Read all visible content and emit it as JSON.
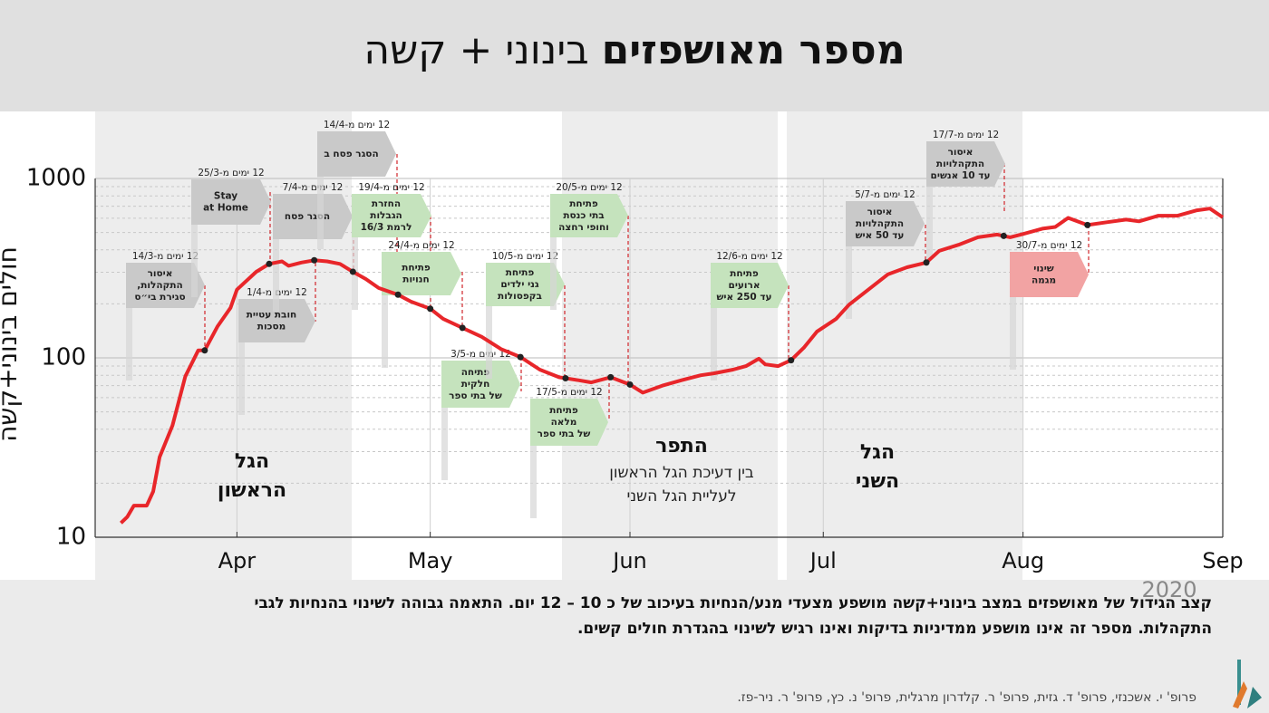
{
  "chart_data": {
    "type": "line",
    "title_bold": "מספר מאושפזים",
    "title": "בינוני + קשה",
    "ylabel": "חולים בינוני+קשה",
    "year_label": "2020",
    "log_scale": true,
    "grid": true,
    "xlim": [
      9,
      184
    ],
    "xticks": [
      {
        "value": 31,
        "label": "Apr"
      },
      {
        "value": 61,
        "label": "May"
      },
      {
        "value": 92,
        "label": "Jun"
      },
      {
        "value": 122,
        "label": "Jul"
      },
      {
        "value": 153,
        "label": "Aug"
      },
      {
        "value": 184,
        "label": "Sep"
      }
    ],
    "ylim": [
      10,
      1000
    ],
    "yticks": [
      10,
      100,
      1000
    ],
    "y_minor_ticks": [
      20,
      30,
      40,
      50,
      60,
      70,
      80,
      90,
      200,
      300,
      400,
      500,
      600,
      700,
      800,
      900
    ],
    "series": [
      {
        "name": "מאושפזים בינוני+קשה",
        "color": "#e8262a",
        "x": [
          13,
          14,
          15,
          17,
          18,
          19,
          21,
          23,
          25,
          26,
          28,
          30,
          31,
          34,
          36,
          38,
          39,
          41,
          43,
          45,
          47,
          49,
          51,
          53,
          56,
          58,
          61,
          63,
          66,
          69,
          72,
          75,
          78,
          81,
          84,
          86,
          89,
          92,
          94,
          97,
          100,
          103,
          105,
          108,
          110,
          112,
          113,
          115,
          117,
          119,
          121,
          124,
          126,
          129,
          132,
          135,
          138,
          140,
          143,
          146,
          149,
          151,
          153,
          156,
          158,
          160,
          163,
          166,
          169,
          171,
          174,
          177,
          180,
          182,
          184
        ],
        "values": [
          12,
          13,
          15,
          15,
          18,
          28,
          42,
          79,
          110,
          110,
          150,
          190,
          240,
          302,
          334,
          345,
          326,
          340,
          350,
          345,
          334,
          302,
          275,
          245,
          225,
          206,
          188,
          165,
          147,
          131,
          112,
          101,
          86,
          78,
          75,
          73,
          78,
          71,
          64,
          70,
          75,
          80,
          82,
          86,
          90,
          99,
          92,
          90,
          97,
          114,
          140,
          165,
          198,
          240,
          292,
          320,
          340,
          395,
          427,
          470,
          487,
          470,
          490,
          525,
          537,
          603,
          550,
          570,
          590,
          577,
          620,
          620,
          665,
          680,
          607
        ]
      }
    ],
    "markers": [
      26,
      36,
      43,
      49,
      56,
      61,
      66,
      75,
      82,
      89,
      92,
      117,
      138,
      150,
      163
    ],
    "regions": [
      {
        "lines": [
          "הגל",
          "הראשון"
        ]
      },
      {
        "lines": [
          "התפר"
        ],
        "sub": [
          "בין דעיכת הגל הראשון",
          "לעליית הגל השני"
        ]
      },
      {
        "lines": [
          "הגל",
          "השני"
        ]
      }
    ],
    "annotations": [
      {
        "header": "12 ימים מ-14/3",
        "lines": [
          "איסור",
          "התקהלות,",
          "סגירת בי״ס"
        ],
        "color": "#c9c9c9"
      },
      {
        "header": "12 ימים מ-25/3",
        "lines": [
          "Stay",
          "at Home"
        ],
        "color": "#c9c9c9"
      },
      {
        "header": "12 ימים מ-1/4",
        "lines": [
          "חובת עטיית",
          "מסכות"
        ],
        "color": "#c9c9c9"
      },
      {
        "header": "12 ימים מ-7/4",
        "lines": [
          "הסגר פסח"
        ],
        "color": "#c9c9c9"
      },
      {
        "header": "12 ימים מ-14/4",
        "lines": [
          "הסגר פסח ב"
        ],
        "color": "#c9c9c9"
      },
      {
        "header": "12 ימים מ-19/4",
        "lines": [
          "החזרת",
          "הגבלות",
          "לרמת 16/3"
        ],
        "color": "#c5e3bd"
      },
      {
        "header": "12 ימים מ-24/4",
        "lines": [
          "פתיחת",
          "חנויות"
        ],
        "color": "#c5e3bd"
      },
      {
        "header": "12 ימים מ-3/5",
        "lines": [
          "פתיחה",
          "חלקית",
          "של בתי ספר"
        ],
        "color": "#c5e3bd"
      },
      {
        "header": "12 ימים מ-10/5",
        "lines": [
          "פתיחת",
          "גני ילדים",
          "בקפסולות"
        ],
        "color": "#c5e3bd"
      },
      {
        "header": "12 ימים מ-17/5",
        "lines": [
          "פתיחת",
          "מלאה",
          "של בתי ספר"
        ],
        "color": "#c5e3bd"
      },
      {
        "header": "12 ימים מ-20/5",
        "lines": [
          "פתיחת",
          "בתי כנסת",
          "וחופי רחצה"
        ],
        "color": "#c5e3bd"
      },
      {
        "header": "12 ימים מ-12/6",
        "lines": [
          "פתיחת",
          "ארועים",
          "עד 250 איש"
        ],
        "color": "#c5e3bd"
      },
      {
        "header": "12 ימים מ-5/7",
        "lines": [
          "איסור",
          "התקהלויות",
          "עד 50 איש"
        ],
        "color": "#c9c9c9"
      },
      {
        "header": "12 ימים מ-17/7",
        "lines": [
          "איסור",
          "התקהלויות",
          "עד 10 אנשים"
        ],
        "color": "#c9c9c9"
      },
      {
        "header": "12 ימים מ-30/7",
        "lines": [
          "שינוי",
          "מגמה"
        ],
        "color": "#f2a3a3"
      }
    ],
    "caption": [
      "קצב הגידול של מאושפזים במצב בינוני+קשה מושפע מצעדי מנע/הנחיות  בעיכוב של כ 10 – 12  יום. התאמה גבוהה לשינוי בהנחיות לגבי",
      "התקהלות. מספר זה אינו מושפע ממדיניות בדיקות ואינו רגיש לשינוי בהגדרת חולים קשים."
    ],
    "credits": "פרופ' י. אשכנזי, פרופ' ד. גזית, פרופ' ר. קלדרון מרגלית, פרופ' נ. כץ, פרופ' ר. ניר-פז."
  }
}
